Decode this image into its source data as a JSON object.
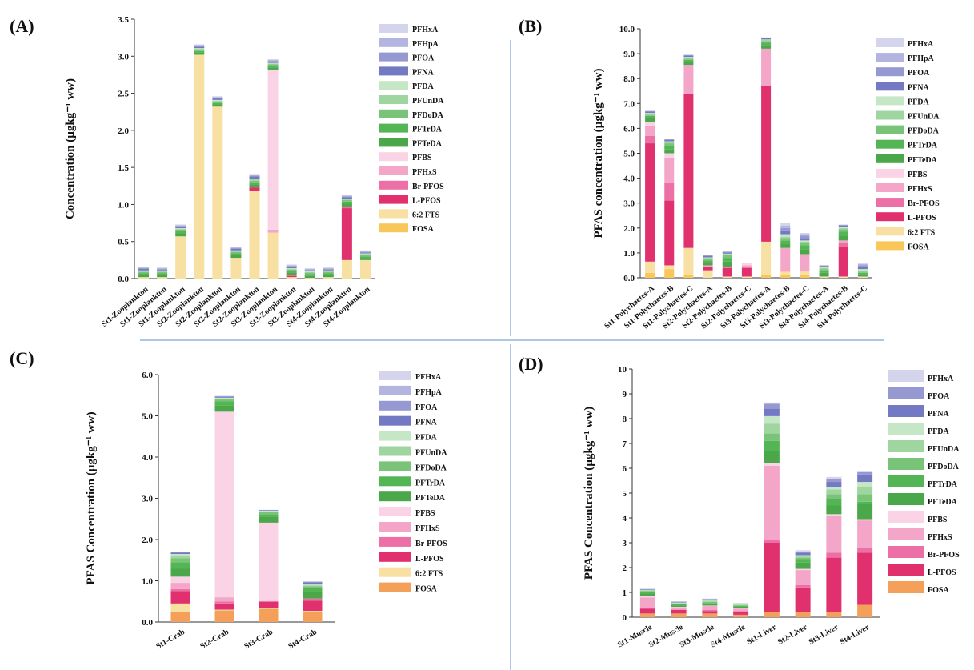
{
  "colors": {
    "PFHxA": "#d4d4ec",
    "PFHpA": "#b3b4df",
    "PFOA": "#9698d2",
    "PFNA": "#7479c3",
    "PFDA": "#c6e7c6",
    "PFUnDA": "#9fd59f",
    "PFDoDA": "#79c479",
    "PFTrDA": "#53b553",
    "PFTeDA": "#4aa84a",
    "PFBS": "#fad4e6",
    "PFHxS": "#f3a6c8",
    "Br-PFOS": "#ec6fa5",
    "L-PFOS": "#e0306e",
    "6:2 FTS": "#f8dfa2",
    "FOSA": "#f9c65a",
    "FOSA_D": "#f5a05a"
  },
  "chart_data": [
    {
      "type": "bar",
      "stacked": true,
      "panel": "(A)",
      "ylabel": "Concentration (µgkg⁻¹ ww)",
      "ylim": [
        0,
        3.5
      ],
      "yticks": [
        "0.0",
        "0.5",
        "1.0",
        "1.5",
        "2.0",
        "2.5",
        "3.0",
        "3.5"
      ],
      "legend": [
        "PFHxA",
        "PFHpA",
        "PFOA",
        "PFNA",
        "PFDA",
        "PFUnDA",
        "PFDoDA",
        "PFTrDA",
        "PFTeDA",
        "PFBS",
        "PFHxS",
        "Br-PFOS",
        "L-PFOS",
        "6:2 FTS",
        "FOSA"
      ],
      "legend_position": "right",
      "categories": [
        "St1-Zooplankton",
        "St1-Zooplankton",
        "St1-Zooplankton",
        "St2-Zooplankton",
        "St2-Zooplankton",
        "St2-Zooplankton",
        "St2-Zooplankton",
        "St3-Zooplankton",
        "St3-Zooplankton",
        "St3-Zooplankton",
        "St4-Zooplankton",
        "St4-Zooplankton",
        "St4-Zooplankton"
      ],
      "series": [
        {
          "name": "FOSA",
          "values": [
            0,
            0,
            0,
            0,
            0,
            0,
            0,
            0,
            0,
            0,
            0,
            0,
            0
          ]
        },
        {
          "name": "6:2 FTS",
          "values": [
            0.02,
            0.02,
            0.57,
            3.02,
            2.32,
            0.28,
            1.18,
            0.62,
            0.02,
            0.01,
            0.02,
            0.25,
            0.25
          ]
        },
        {
          "name": "L-PFOS",
          "values": [
            0,
            0,
            0,
            0,
            0,
            0,
            0.05,
            0,
            0.02,
            0,
            0,
            0.7,
            0
          ]
        },
        {
          "name": "Br-PFOS",
          "values": [
            0,
            0,
            0,
            0,
            0,
            0,
            0,
            0,
            0,
            0,
            0,
            0.02,
            0
          ]
        },
        {
          "name": "PFHxS",
          "values": [
            0,
            0,
            0,
            0,
            0,
            0,
            0,
            0.04,
            0.01,
            0,
            0,
            0,
            0
          ]
        },
        {
          "name": "PFBS",
          "values": [
            0,
            0,
            0,
            0,
            0,
            0,
            0,
            2.16,
            0,
            0,
            0,
            0,
            0
          ]
        },
        {
          "name": "PFTeDA",
          "values": [
            0.03,
            0.03,
            0.04,
            0.03,
            0.03,
            0.04,
            0.04,
            0.03,
            0.03,
            0.03,
            0.03,
            0.04,
            0.03
          ]
        },
        {
          "name": "PFTrDA",
          "values": [
            0.02,
            0.02,
            0.03,
            0.02,
            0.02,
            0.02,
            0.03,
            0.02,
            0.02,
            0.02,
            0.02,
            0.03,
            0.02
          ]
        },
        {
          "name": "PFDoDA",
          "values": [
            0.02,
            0.02,
            0.02,
            0.02,
            0.02,
            0.02,
            0.02,
            0.02,
            0.02,
            0.02,
            0.02,
            0.02,
            0.02
          ]
        },
        {
          "name": "PFUnDA",
          "values": [
            0.01,
            0.01,
            0.01,
            0.01,
            0.01,
            0.01,
            0.02,
            0.01,
            0.01,
            0.01,
            0.01,
            0.01,
            0.01
          ]
        },
        {
          "name": "PFDA",
          "values": [
            0.01,
            0.01,
            0.01,
            0.01,
            0.01,
            0.01,
            0.01,
            0.01,
            0.01,
            0.01,
            0.01,
            0.01,
            0.01
          ]
        },
        {
          "name": "PFNA",
          "values": [
            0.02,
            0.01,
            0.02,
            0.02,
            0.02,
            0.02,
            0.03,
            0.02,
            0.02,
            0.01,
            0.01,
            0.02,
            0.01
          ]
        },
        {
          "name": "PFOA",
          "values": [
            0.01,
            0.01,
            0.01,
            0.01,
            0.01,
            0.01,
            0.01,
            0.01,
            0.01,
            0.01,
            0.01,
            0.01,
            0.01
          ]
        },
        {
          "name": "PFHpA",
          "values": [
            0.01,
            0.01,
            0.01,
            0.01,
            0.01,
            0.01,
            0.01,
            0.01,
            0.01,
            0.01,
            0.01,
            0.01,
            0.01
          ]
        },
        {
          "name": "PFHxA",
          "values": [
            0.01,
            0.01,
            0.01,
            0.01,
            0.01,
            0.01,
            0.01,
            0.01,
            0.01,
            0.01,
            0.01,
            0.01,
            0.01
          ]
        }
      ]
    },
    {
      "type": "bar",
      "stacked": true,
      "panel": "(B)",
      "ylabel": "PFAS concentration (µgkg⁻¹ ww)",
      "ylim": [
        0,
        10
      ],
      "yticks": [
        "0.0",
        "1.0",
        "2.0",
        "3.0",
        "4.0",
        "5.0",
        "6.0",
        "7.0",
        "8.0",
        "9.0",
        "10.0"
      ],
      "legend": [
        "PFHxA",
        "PFHpA",
        "PFOA",
        "PFNA",
        "PFDA",
        "PFUnDA",
        "PFDoDA",
        "PFTrDA",
        "PFTeDA",
        "PFBS",
        "PFHxS",
        "Br-PFOS",
        "L-PFOS",
        "6:2 FTS",
        "FOSA"
      ],
      "legend_position": "right",
      "categories": [
        "St1-Polychaetes-A",
        "St1-Polychaetes-B",
        "St1-Polychaetes-C",
        "St2-Polychaetes-A",
        "St2-Polychaetes-B",
        "St2-Polychaetes-C",
        "St3-Polychaetes-A",
        "St3-Polychaetes-B",
        "St3-Polychaetes-C",
        "St4-Polychaetes-A",
        "St4-Polychaetes-B",
        "St4-Polychaetes-C"
      ],
      "series": [
        {
          "name": "FOSA",
          "values": [
            0.2,
            0.35,
            0.1,
            0,
            0,
            0,
            0.1,
            0.1,
            0.1,
            0,
            0,
            0
          ]
        },
        {
          "name": "6:2 FTS",
          "values": [
            0.45,
            0.15,
            1.1,
            0.3,
            0.05,
            0.05,
            1.35,
            0.15,
            0.15,
            0.05,
            0.05,
            0.05
          ]
        },
        {
          "name": "L-PFOS",
          "values": [
            4.75,
            2.6,
            6.2,
            0.15,
            0.35,
            0.35,
            6.25,
            0,
            0,
            0,
            1.2,
            0
          ]
        },
        {
          "name": "Br-PFOS",
          "values": [
            0.3,
            0.7,
            0,
            0,
            0,
            0,
            0,
            0.05,
            0,
            0,
            0.15,
            0
          ]
        },
        {
          "name": "PFHxS",
          "values": [
            0.4,
            1.0,
            1.15,
            0.05,
            0.05,
            0.1,
            1.5,
            0.9,
            0.7,
            0,
            0.1,
            0
          ]
        },
        {
          "name": "PFBS",
          "values": [
            0.15,
            0.2,
            0,
            0,
            0,
            0.1,
            0,
            0,
            0,
            0,
            0,
            0
          ]
        },
        {
          "name": "PFTeDA",
          "values": [
            0.15,
            0.15,
            0.1,
            0.1,
            0.2,
            0,
            0.15,
            0.15,
            0.2,
            0.15,
            0.2,
            0.1
          ]
        },
        {
          "name": "PFTrDA",
          "values": [
            0.1,
            0.15,
            0.1,
            0.1,
            0.15,
            0,
            0.1,
            0.15,
            0.15,
            0.1,
            0.15,
            0.05
          ]
        },
        {
          "name": "PFDoDA",
          "values": [
            0.05,
            0.1,
            0.05,
            0.05,
            0.1,
            0,
            0.05,
            0.1,
            0.1,
            0.05,
            0.1,
            0.05
          ]
        },
        {
          "name": "PFUnDA",
          "values": [
            0.05,
            0.05,
            0.05,
            0.05,
            0.05,
            0,
            0.05,
            0.05,
            0.05,
            0.05,
            0.05,
            0.05
          ]
        },
        {
          "name": "PFDA",
          "values": [
            0.02,
            0.03,
            0.02,
            0.02,
            0.02,
            0,
            0.02,
            0.1,
            0.05,
            0.02,
            0.05,
            0.05
          ]
        },
        {
          "name": "PFNA",
          "values": [
            0.05,
            0.05,
            0.05,
            0.05,
            0.05,
            0,
            0.05,
            0.15,
            0.1,
            0.05,
            0.05,
            0.1
          ]
        },
        {
          "name": "PFOA",
          "values": [
            0.03,
            0.03,
            0.03,
            0.03,
            0.03,
            0,
            0.03,
            0.1,
            0.1,
            0.03,
            0.03,
            0.05
          ]
        },
        {
          "name": "PFHpA",
          "values": [
            0.0,
            0.0,
            0.0,
            0.0,
            0.0,
            0,
            0.0,
            0.1,
            0.05,
            0.0,
            0.0,
            0.05
          ]
        },
        {
          "name": "PFHxA",
          "values": [
            0.0,
            0.0,
            0.0,
            0.0,
            0.0,
            0,
            0.0,
            0.1,
            0.05,
            0.0,
            0.0,
            0.05
          ]
        }
      ]
    },
    {
      "type": "bar",
      "stacked": true,
      "panel": "(C)",
      "ylabel": "PFAS Concentration (µgkg⁻¹ ww)",
      "ylim": [
        0,
        6
      ],
      "yticks": [
        "0.0",
        "1.0",
        "2.0",
        "3.0",
        "4.0",
        "5.0",
        "6.0"
      ],
      "legend": [
        "PFHxA",
        "PFHpA",
        "PFOA",
        "PFNA",
        "PFDA",
        "PFUnDA",
        "PFDoDA",
        "PFTrDA",
        "PFTeDA",
        "PFBS",
        "PFHxS",
        "Br-PFOS",
        "L-PFOS",
        "6:2 FTS",
        "FOSA"
      ],
      "legend_position": "right",
      "categories": [
        "St1-Crab",
        "St2-Crab",
        "St3-Crab",
        "St4-Crab"
      ],
      "series": [
        {
          "name": "FOSA",
          "values": [
            0.25,
            0.28,
            0.32,
            0.25
          ]
        },
        {
          "name": "6:2 FTS",
          "values": [
            0.2,
            0.02,
            0.02,
            0.02
          ]
        },
        {
          "name": "L-PFOS",
          "values": [
            0.3,
            0.15,
            0.15,
            0.25
          ]
        },
        {
          "name": "Br-PFOS",
          "values": [
            0.05,
            0.05,
            0.02,
            0.05
          ]
        },
        {
          "name": "PFHxS",
          "values": [
            0.15,
            0.1,
            0.0,
            0.0
          ]
        },
        {
          "name": "PFBS",
          "values": [
            0.15,
            4.5,
            1.9,
            0.0
          ]
        },
        {
          "name": "PFTeDA",
          "values": [
            0.2,
            0.15,
            0.15,
            0.15
          ]
        },
        {
          "name": "PFTrDA",
          "values": [
            0.15,
            0.1,
            0.05,
            0.1
          ]
        },
        {
          "name": "PFDoDA",
          "values": [
            0.1,
            0.05,
            0.05,
            0.05
          ]
        },
        {
          "name": "PFUnDA",
          "values": [
            0.05,
            0.02,
            0.02,
            0.02
          ]
        },
        {
          "name": "PFDA",
          "values": [
            0.05,
            0.02,
            0.02,
            0.02
          ]
        },
        {
          "name": "PFNA",
          "values": [
            0.03,
            0.02,
            0.01,
            0.05
          ]
        },
        {
          "name": "PFOA",
          "values": [
            0.02,
            0.02,
            0.01,
            0.02
          ]
        },
        {
          "name": "PFHpA",
          "values": [
            0.0,
            0.0,
            0.0,
            0.0
          ]
        },
        {
          "name": "PFHxA",
          "values": [
            0.0,
            0.0,
            0.0,
            0.0
          ]
        }
      ]
    },
    {
      "type": "bar",
      "stacked": true,
      "panel": "(D)",
      "ylabel": "PFAS Concentration (µgkg⁻¹ ww)",
      "ylim": [
        0,
        10
      ],
      "yticks": [
        "0",
        "1",
        "2",
        "3",
        "4",
        "5",
        "6",
        "7",
        "8",
        "9",
        "10"
      ],
      "legend": [
        "PFHxA",
        "PFOA",
        "PFNA",
        "PFDA",
        "PFUnDA",
        "PFDoDA",
        "PFTrDA",
        "PFTeDA",
        "PFBS",
        "PFHxS",
        "Br-PFOS",
        "L-PFOS",
        "FOSA"
      ],
      "legend_position": "right",
      "categories": [
        "St1-Muscle",
        "St2-Muscle",
        "St3-Muscle",
        "St4-Muscle",
        "St1-Liver",
        "St2-Liver",
        "St3-Liver",
        "St4-Liver"
      ],
      "series": [
        {
          "name": "FOSA",
          "values": [
            0.15,
            0.15,
            0.15,
            0.1,
            0.2,
            0.2,
            0.2,
            0.5
          ]
        },
        {
          "name": "L-PFOS",
          "values": [
            0.2,
            0.15,
            0.1,
            0.1,
            2.8,
            1.0,
            2.2,
            2.1
          ]
        },
        {
          "name": "Br-PFOS",
          "values": [
            0.0,
            0.0,
            0.05,
            0.05,
            0.1,
            0.1,
            0.2,
            0.2
          ]
        },
        {
          "name": "PFHxS",
          "values": [
            0.45,
            0.1,
            0.15,
            0.1,
            3.0,
            0.6,
            1.5,
            1.1
          ]
        },
        {
          "name": "PFBS",
          "values": [
            0.05,
            0.02,
            0.02,
            0.02,
            0.1,
            0.05,
            0.05,
            0.05
          ]
        },
        {
          "name": "PFTeDA",
          "values": [
            0.1,
            0.05,
            0.05,
            0.05,
            0.5,
            0.25,
            0.35,
            0.6
          ]
        },
        {
          "name": "PFTrDA",
          "values": [
            0.05,
            0.05,
            0.05,
            0.03,
            0.4,
            0.15,
            0.25,
            0.1
          ]
        },
        {
          "name": "PFDoDA",
          "values": [
            0.05,
            0.03,
            0.05,
            0.03,
            0.3,
            0.05,
            0.2,
            0.3
          ]
        },
        {
          "name": "PFUnDA",
          "values": [
            0.03,
            0.02,
            0.05,
            0.02,
            0.4,
            0.05,
            0.2,
            0.3
          ]
        },
        {
          "name": "PFDA",
          "values": [
            0.02,
            0.02,
            0.03,
            0.02,
            0.3,
            0.05,
            0.1,
            0.2
          ]
        },
        {
          "name": "PFNA",
          "values": [
            0.02,
            0.02,
            0.02,
            0.02,
            0.3,
            0.1,
            0.2,
            0.3
          ]
        },
        {
          "name": "PFOA",
          "values": [
            0.02,
            0.02,
            0.02,
            0.02,
            0.2,
            0.05,
            0.1,
            0.1
          ]
        },
        {
          "name": "PFHxA",
          "values": [
            0.01,
            0.01,
            0.01,
            0.01,
            0.05,
            0.05,
            0.1,
            0.0
          ]
        }
      ]
    }
  ]
}
